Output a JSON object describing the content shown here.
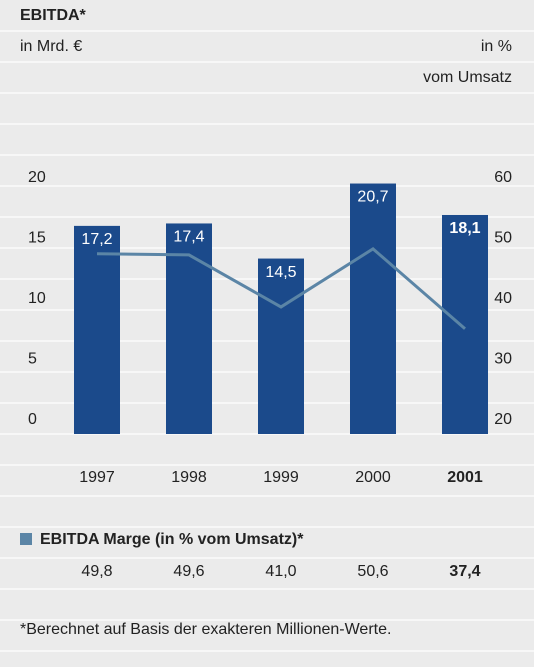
{
  "chart_data": {
    "type": "bar",
    "title": "EBITDA*",
    "y_label": "in Mrd. €",
    "y2_label": [
      "in %",
      "vom Umsatz"
    ],
    "categories": [
      "1997",
      "1998",
      "1999",
      "2000",
      "2001"
    ],
    "series": [
      {
        "type": "bar",
        "color": "#1b4a8b",
        "values": [
          17.2,
          17.4,
          14.5,
          20.7,
          18.1
        ],
        "value_labels": [
          "17,2",
          "17,4",
          "14,5",
          "20,7",
          "18,1"
        ]
      },
      {
        "type": "line",
        "axis": "y2",
        "name": "EBITDA Marge (in % vom Umsatz)*",
        "color": "#5b85a6",
        "values": [
          49.8,
          49.6,
          41.0,
          50.6,
          37.4
        ],
        "value_labels": [
          "49,8",
          "49,6",
          "41,0",
          "50,6",
          "37,4"
        ]
      }
    ],
    "ylim": [
      0,
      20
    ],
    "yticks": [
      20,
      15,
      10,
      5,
      0
    ],
    "y2lim": [
      20,
      60
    ],
    "y2ticks": [
      60,
      50,
      40,
      30,
      20
    ],
    "footnote": "*Berechnet auf Basis der exakteren Millionen-Werte."
  }
}
